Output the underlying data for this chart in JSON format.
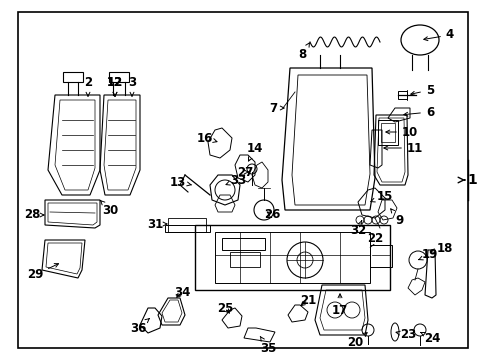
{
  "bg_color": "#ffffff",
  "border_color": "#000000",
  "line_color": "#000000",
  "fig_width": 4.89,
  "fig_height": 3.6,
  "dpi": 100,
  "font_size": 8.5
}
